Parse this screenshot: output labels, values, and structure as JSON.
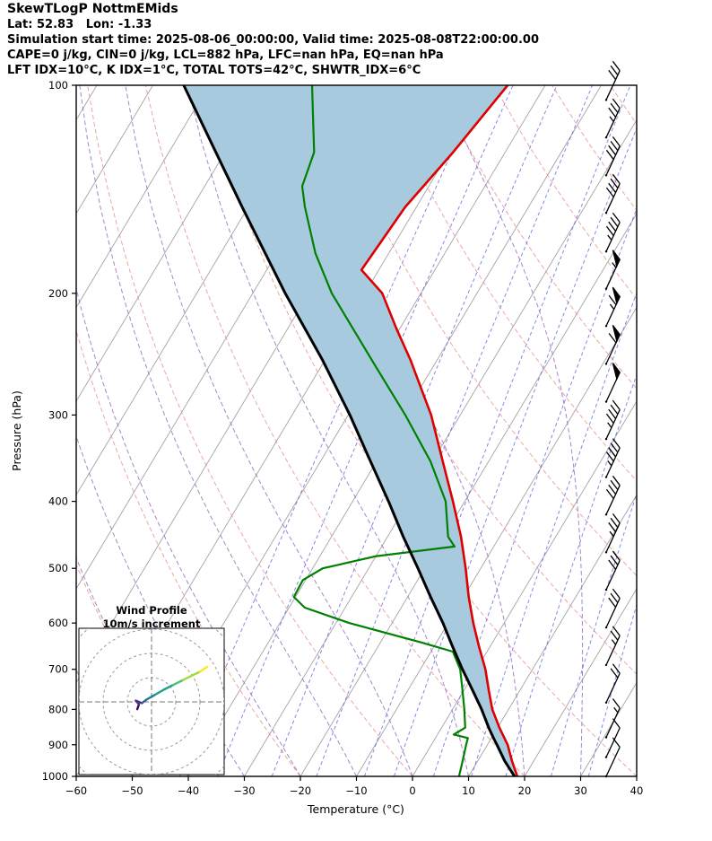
{
  "header": {
    "title": "SkewTLogP NottmEMids",
    "location_line": "Lat: 52.83   Lon: -1.33",
    "time_line": "Simulation start time: 2025-08-06_00:00:00, Valid time: 2025-08-08T22:00:00.00",
    "stability_line": "CAPE=0 j/kg, CIN=0 j/kg, LCL=882 hPa, LFC=nan hPa, EQ=nan hPa",
    "indices_line": "LFT IDX=10°C, K IDX=1°C, TOTAL TOTS=42°C, SHWTR_IDX=6°C"
  },
  "axes": {
    "x_label": "Temperature (°C)",
    "y_label": "Pressure (hPa)",
    "x_range": [
      -60,
      40
    ],
    "p_range": [
      100,
      1000
    ],
    "x_ticks": [
      -60,
      -50,
      -40,
      -30,
      -20,
      -10,
      0,
      10,
      20,
      30,
      40
    ],
    "y_ticks": [
      100,
      200,
      300,
      400,
      500,
      600,
      700,
      800,
      900,
      1000
    ]
  },
  "chart_data": {
    "type": "skewt-logp",
    "skew_factor_degC_per_ln_p": 32,
    "station": "NottmEMids",
    "lat": 52.83,
    "lon": -1.33,
    "cape_j_kg": 0,
    "cin_j_kg": 0,
    "lcl_hpa": 882,
    "lifted_index_C": 10,
    "k_index_C": 1,
    "total_totals_C": 42,
    "showalter_index_C": 6,
    "temperature_profile": [
      [
        1000,
        18.7
      ],
      [
        950,
        16.1
      ],
      [
        900,
        13.6
      ],
      [
        850,
        10.3
      ],
      [
        800,
        7.1
      ],
      [
        750,
        4.4
      ],
      [
        700,
        1.6
      ],
      [
        650,
        -1.9
      ],
      [
        600,
        -5.5
      ],
      [
        550,
        -9.1
      ],
      [
        500,
        -12.7
      ],
      [
        450,
        -16.9
      ],
      [
        400,
        -22.1
      ],
      [
        350,
        -28.2
      ],
      [
        300,
        -35.2
      ],
      [
        250,
        -44.7
      ],
      [
        225,
        -50.6
      ],
      [
        200,
        -56.9
      ],
      [
        185,
        -63.1
      ],
      [
        150,
        -62.0
      ],
      [
        125,
        -59.3
      ],
      [
        100,
        -56.7
      ]
    ],
    "dewpoint_profile": [
      [
        1000,
        8.3
      ],
      [
        950,
        7.3
      ],
      [
        900,
        6.2
      ],
      [
        880,
        5.8
      ],
      [
        870,
        2.9
      ],
      [
        850,
        4.2
      ],
      [
        800,
        2.1
      ],
      [
        750,
        -0.3
      ],
      [
        700,
        -2.9
      ],
      [
        660,
        -6.1
      ],
      [
        640,
        -12.7
      ],
      [
        600,
        -27.6
      ],
      [
        570,
        -37.2
      ],
      [
        550,
        -40.3
      ],
      [
        520,
        -40.5
      ],
      [
        500,
        -38.2
      ],
      [
        480,
        -29.9
      ],
      [
        465,
        -17.0
      ],
      [
        450,
        -19.2
      ],
      [
        400,
        -23.4
      ],
      [
        350,
        -30.4
      ],
      [
        300,
        -39.8
      ],
      [
        250,
        -51.6
      ],
      [
        200,
        -65.9
      ],
      [
        175,
        -73.1
      ],
      [
        150,
        -79.9
      ],
      [
        140,
        -82.6
      ],
      [
        125,
        -84.1
      ],
      [
        100,
        -91.6
      ]
    ],
    "parcel_profile": [
      [
        1000,
        18.2
      ],
      [
        950,
        14.8
      ],
      [
        900,
        11.7
      ],
      [
        882,
        10.5
      ],
      [
        850,
        8.4
      ],
      [
        800,
        5.2
      ],
      [
        750,
        1.5
      ],
      [
        700,
        -2.5
      ],
      [
        650,
        -6.6
      ],
      [
        600,
        -10.9
      ],
      [
        550,
        -15.9
      ],
      [
        500,
        -21.2
      ],
      [
        450,
        -27.2
      ],
      [
        400,
        -33.6
      ],
      [
        350,
        -41.1
      ],
      [
        300,
        -49.7
      ],
      [
        250,
        -60.4
      ],
      [
        200,
        -74.2
      ],
      [
        150,
        -91.1
      ],
      [
        100,
        -114.5
      ]
    ],
    "wind": {
      "barb_angle_deg": 25,
      "barbs": [
        {
          "p": 105,
          "kt": 30
        },
        {
          "p": 119,
          "kt": 35
        },
        {
          "p": 135,
          "kt": 40
        },
        {
          "p": 153,
          "kt": 40
        },
        {
          "p": 174,
          "kt": 45
        },
        {
          "p": 197,
          "kt": 55
        },
        {
          "p": 223,
          "kt": 65
        },
        {
          "p": 253,
          "kt": 60
        },
        {
          "p": 287,
          "kt": 50
        },
        {
          "p": 325,
          "kt": 45
        },
        {
          "p": 369,
          "kt": 45
        },
        {
          "p": 418,
          "kt": 40
        },
        {
          "p": 474,
          "kt": 35
        },
        {
          "p": 537,
          "kt": 30
        },
        {
          "p": 609,
          "kt": 30
        },
        {
          "p": 690,
          "kt": 25
        },
        {
          "p": 782,
          "kt": 20
        },
        {
          "p": 878,
          "kt": 15
        },
        {
          "p": 938,
          "kt": 10
        },
        {
          "p": 1000,
          "kt": 10
        }
      ]
    },
    "background": {
      "isotherms_C": {
        "start": -150,
        "end": 40,
        "step": 10
      },
      "dry_adiabats_C": {
        "start": -40,
        "end": 180,
        "step": 20
      },
      "moist_adiabats_C": {
        "start": -60,
        "end": 30,
        "step": 10
      },
      "mixing_ratio_g_kg": [
        0.1,
        0.2,
        0.5,
        1,
        2,
        3,
        5,
        8,
        12,
        20,
        30
      ]
    },
    "colors": {
      "temperature": "#dd0000",
      "dewpoint": "#008000",
      "parcel": "#000000",
      "shade": "#a7cade",
      "isotherm": "#a3a3a3",
      "dry_adiabat": "#e89090",
      "moist_adiabat": "#9467bd",
      "mixing_ratio": "#5555dd"
    },
    "hodograph": {
      "title": "Wind Profile",
      "subtitle": "10m/s increment",
      "ring_interval_ms": 10,
      "rings_ms": [
        10,
        20,
        30,
        40
      ],
      "trace_uv_ms": [
        [
          -5.9,
          -3.0
        ],
        [
          -5.2,
          -1.0
        ],
        [
          -6.5,
          0.5
        ],
        [
          -4.0,
          -0.5
        ],
        [
          -2.0,
          1.0
        ],
        [
          1.5,
          3.0
        ],
        [
          5.0,
          5.0
        ],
        [
          9.0,
          7.0
        ],
        [
          13.0,
          9.0
        ],
        [
          17.0,
          11.0
        ],
        [
          20.0,
          12.5
        ],
        [
          23.0,
          14.5
        ]
      ],
      "colormap": [
        "#440154",
        "#46327e",
        "#365c8d",
        "#277f8e",
        "#1fa187",
        "#4ac16d",
        "#a0da39",
        "#fde725"
      ]
    }
  }
}
